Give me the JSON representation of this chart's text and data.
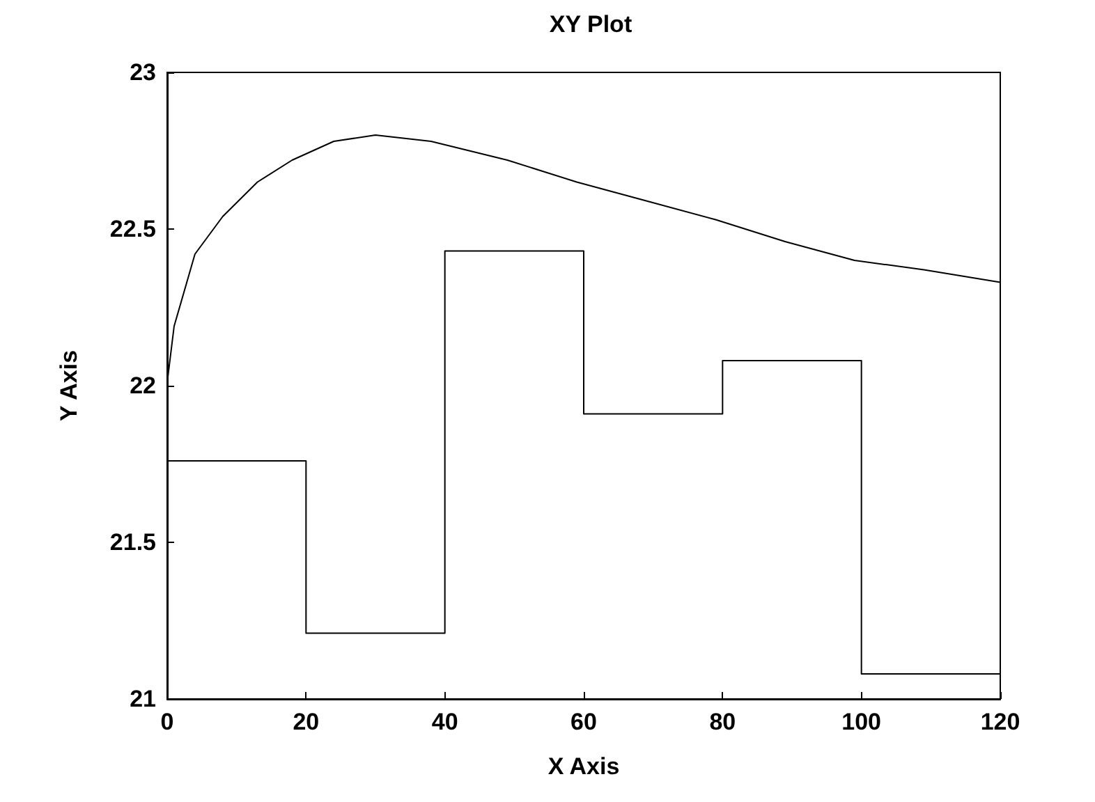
{
  "chart_data": {
    "type": "line",
    "title": "XY Plot",
    "xlabel": "X Axis",
    "ylabel": "Y Axis",
    "xlim": [
      0,
      120
    ],
    "xticks": [
      0,
      20,
      40,
      60,
      80,
      100,
      120
    ],
    "ylim": [
      21,
      23
    ],
    "yticks": [
      21,
      21.5,
      22,
      22.5,
      23
    ],
    "grid": false,
    "marker": "none",
    "line_style": "solid",
    "series": [
      {
        "color": "#000000",
        "x": [
          0,
          1,
          4,
          8,
          13,
          18,
          24,
          30,
          38,
          49,
          59,
          69,
          79,
          89,
          99,
          109,
          120
        ],
        "values": [
          22.01,
          22.19,
          22.42,
          22.54,
          22.65,
          22.72,
          22.78,
          22.8,
          22.78,
          22.72,
          22.65,
          22.59,
          22.53,
          22.46,
          22.4,
          22.37,
          22.33
        ]
      },
      {
        "type": "step",
        "color": "#000000",
        "x": [
          0,
          20,
          40,
          60,
          80,
          100,
          120
        ],
        "values": [
          21.76,
          21.21,
          22.43,
          21.91,
          22.08,
          21.08,
          21.08
        ]
      }
    ]
  }
}
